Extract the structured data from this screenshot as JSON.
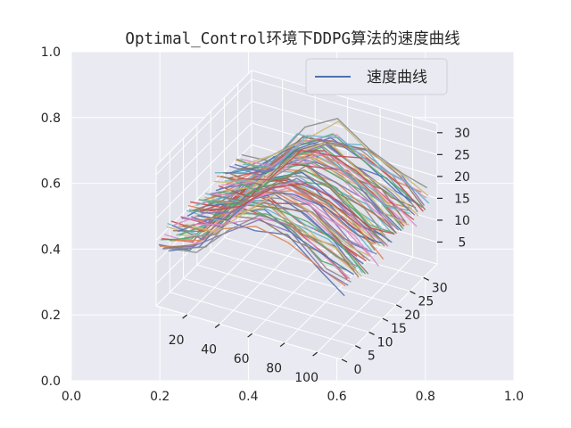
{
  "chart_data": {
    "type": "line",
    "projection": "3d",
    "title": "Optimal_Control环境下DDPG算法的速度曲线",
    "legend": {
      "label": "速度曲线",
      "placement": "top-right"
    },
    "grid": true,
    "outer_axes": {
      "xlim": [
        0,
        1
      ],
      "ylim": [
        0,
        1
      ],
      "xticks": [
        "0.0",
        "0.2",
        "0.4",
        "0.6",
        "0.8",
        "1.0"
      ],
      "yticks": [
        "0.0",
        "0.2",
        "0.4",
        "0.6",
        "0.8",
        "1.0"
      ]
    },
    "x_axis": {
      "lim": [
        1,
        115
      ],
      "ticks": [
        20,
        40,
        60,
        80,
        100
      ]
    },
    "y_axis": {
      "lim": [
        0,
        35
      ],
      "ticks": [
        0,
        5,
        10,
        15,
        20,
        25,
        30
      ]
    },
    "z_axis": {
      "lim": [
        0,
        32
      ],
      "ticks": [
        5,
        10,
        15,
        20,
        25,
        30
      ]
    },
    "series_count": 90,
    "series_points": 7,
    "series_x": [
      1,
      20,
      40,
      60,
      80,
      100,
      115
    ],
    "series_z_profile": [
      13,
      15,
      23,
      26,
      24,
      20,
      17
    ],
    "colors": [
      "#4c72b0",
      "#dd8452",
      "#55a868",
      "#c44e52",
      "#8172b3",
      "#937860",
      "#da8bc3",
      "#8c8c8c",
      "#ccb974",
      "#64b5cd"
    ],
    "line_color": "#4c72b0"
  }
}
